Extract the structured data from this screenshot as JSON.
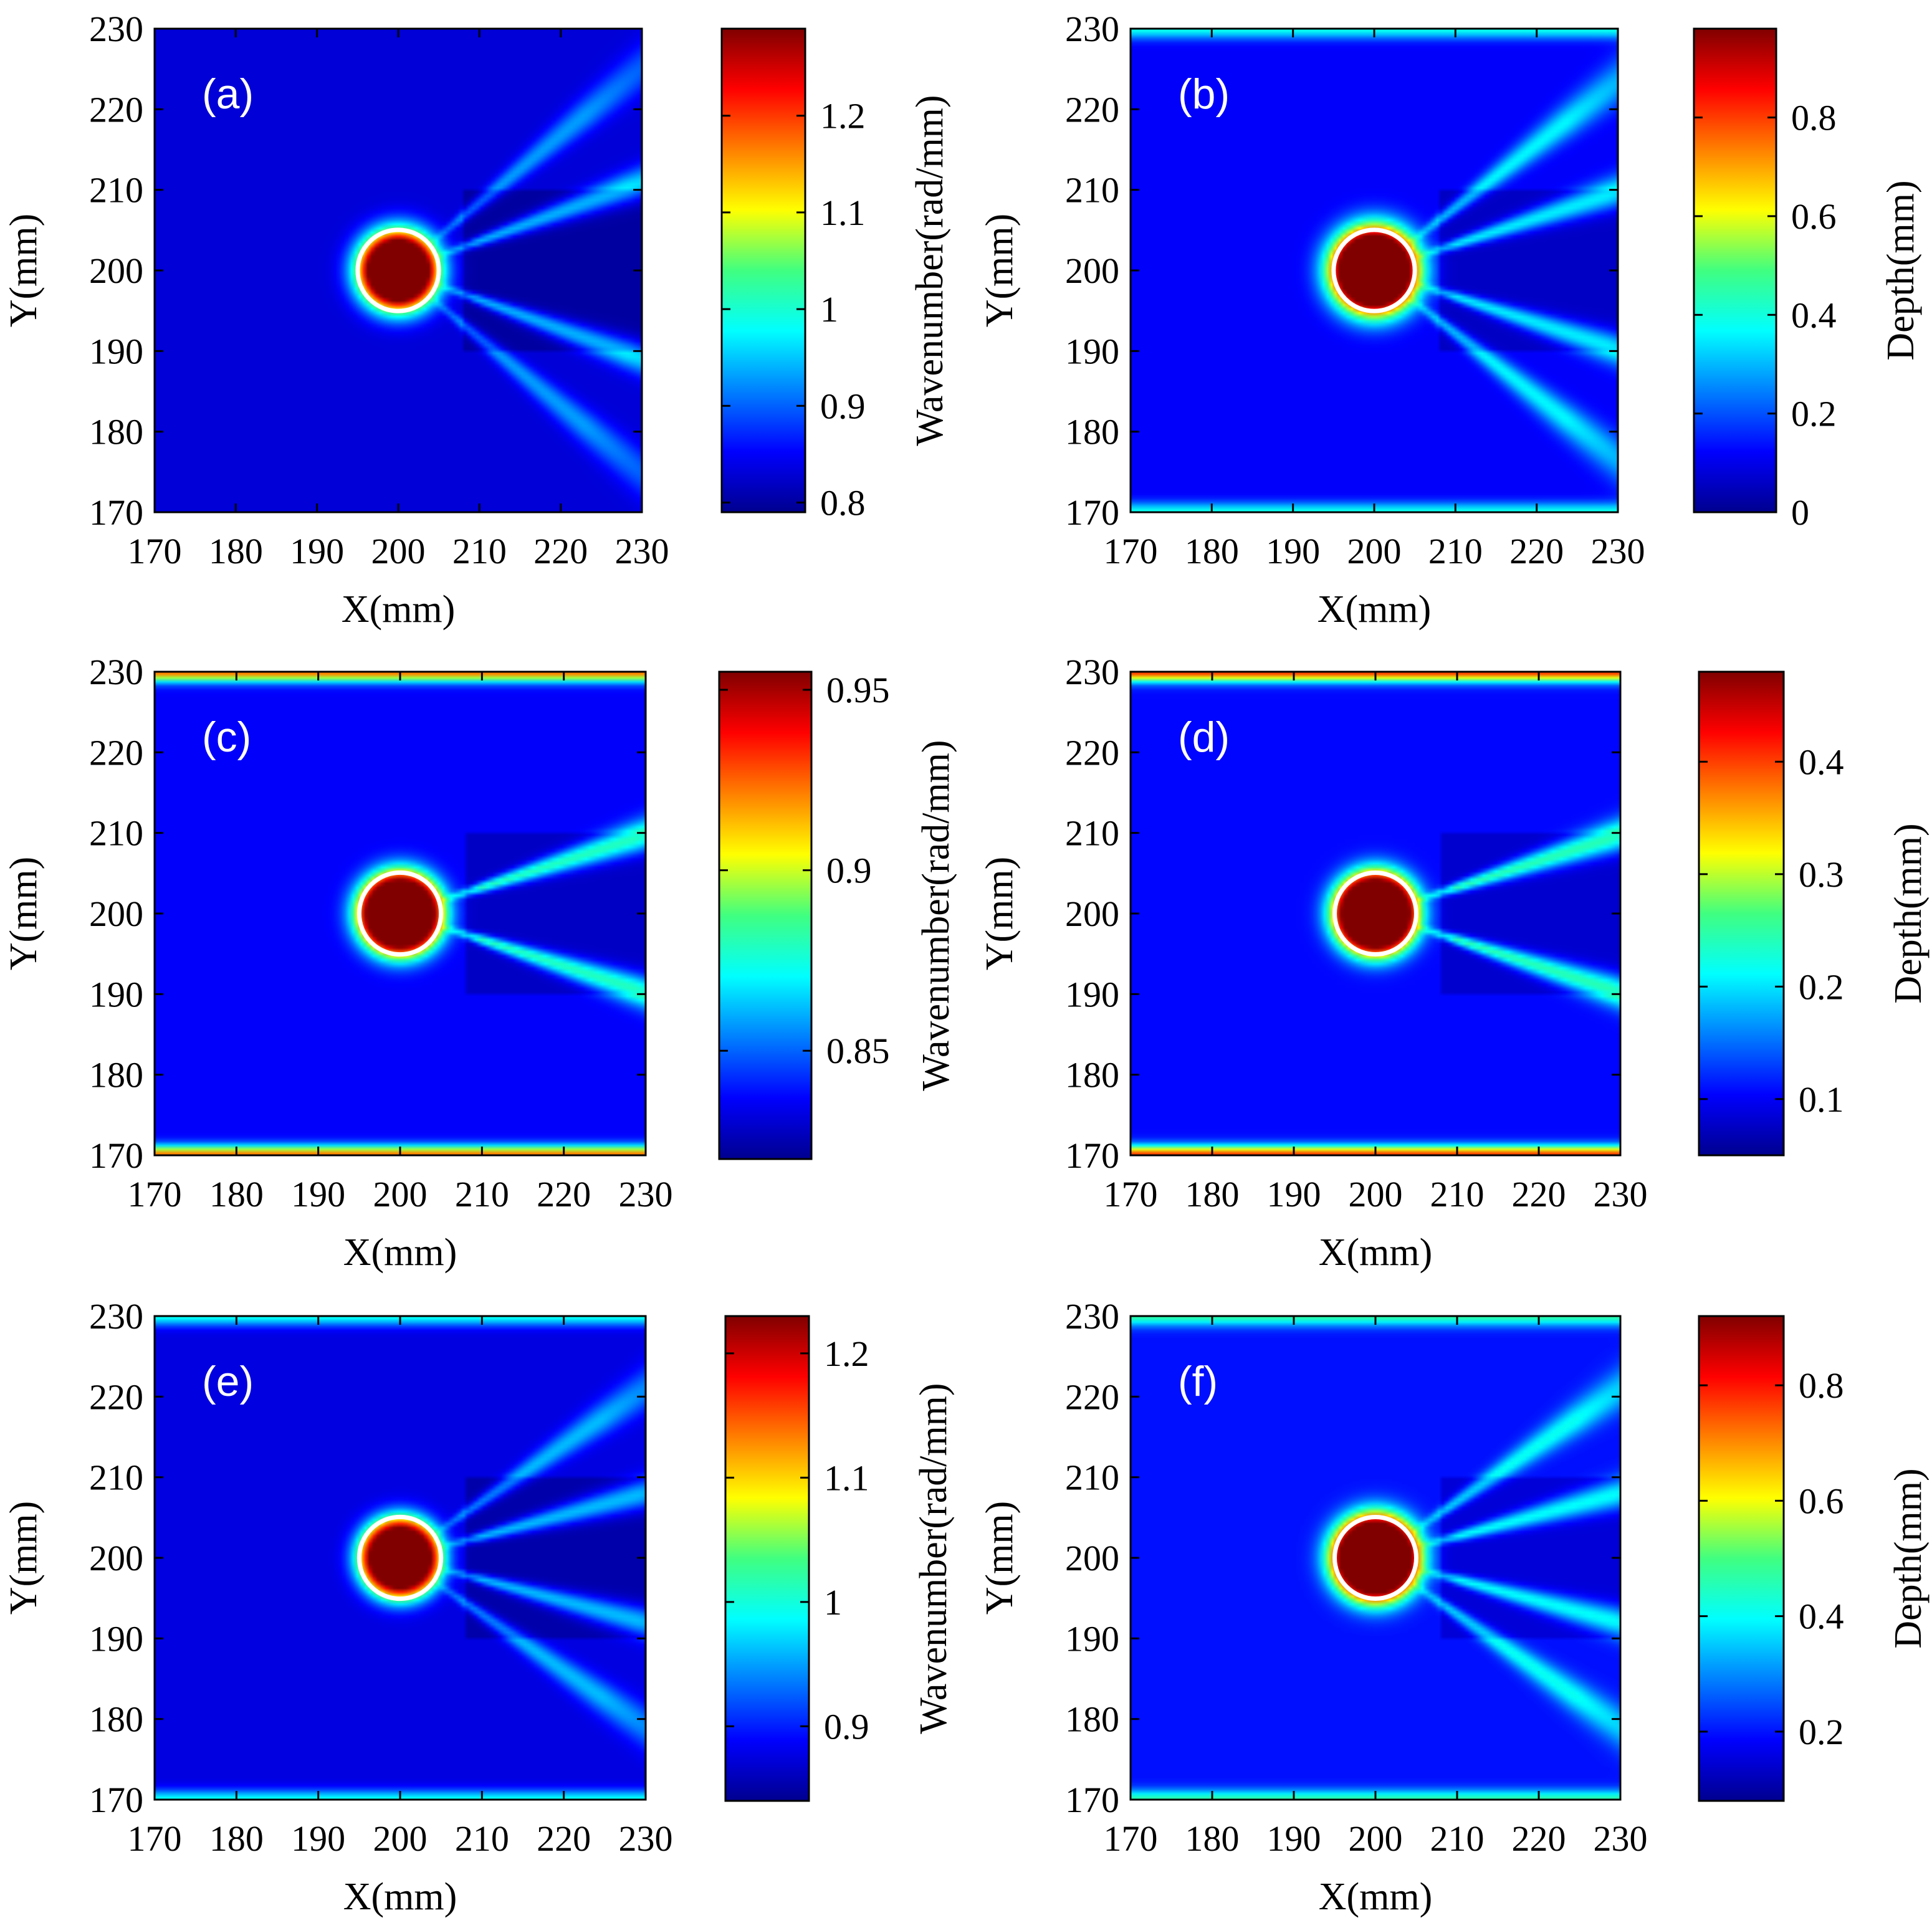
{
  "figure": {
    "colormap": "jet",
    "marker_color": "#ffffff",
    "background": "#ffffff"
  },
  "chart_data": [
    {
      "type": "heatmap",
      "label": "(a)",
      "quantity": "wavenumber",
      "xlabel": "X(mm)",
      "ylabel": "Y(mm)",
      "xlim": [
        170,
        230
      ],
      "ylim": [
        170,
        230
      ],
      "xticks": [
        170,
        180,
        190,
        200,
        210,
        220,
        230
      ],
      "yticks": [
        170,
        180,
        190,
        200,
        210,
        220,
        230
      ],
      "colorbar": {
        "label": "Wavenumber(rad/mm)",
        "range": [
          0.79,
          1.29
        ],
        "ticks": [
          "0.8",
          "0.9",
          "1",
          "1.1",
          "1.2"
        ],
        "tick_values": [
          0.8,
          0.9,
          1.0,
          1.1,
          1.2
        ]
      },
      "defect": {
        "center": [
          200,
          200
        ],
        "radius": 5
      },
      "field": {
        "peak": 0.98,
        "core_radius": 4.2,
        "halo_radius": 6.5,
        "halo_level": 0.42,
        "background": 0.08,
        "rays": [
          {
            "angle": 20,
            "level": 0.28
          },
          {
            "angle": -20,
            "level": 0.28
          },
          {
            "angle": 40,
            "level": 0.2
          },
          {
            "angle": -40,
            "level": 0.2
          }
        ],
        "edge_level": 0.0
      }
    },
    {
      "type": "heatmap",
      "label": "(b)",
      "quantity": "depth",
      "xlabel": "X(mm)",
      "ylabel": "Y(mm)",
      "xlim": [
        170,
        230
      ],
      "ylim": [
        170,
        230
      ],
      "xticks": [
        170,
        180,
        190,
        200,
        210,
        220,
        230
      ],
      "yticks": [
        170,
        180,
        190,
        200,
        210,
        220,
        230
      ],
      "colorbar": {
        "label": "Depth(mm)",
        "range": [
          0,
          0.98
        ],
        "ticks": [
          "0",
          "0.2",
          "0.4",
          "0.6",
          "0.8"
        ],
        "tick_values": [
          0,
          0.2,
          0.4,
          0.6,
          0.8
        ]
      },
      "defect": {
        "center": [
          200,
          200
        ],
        "radius": 5
      },
      "field": {
        "peak": 0.98,
        "core_radius": 4.6,
        "halo_radius": 7,
        "halo_level": 0.45,
        "background": 0.12,
        "rays": [
          {
            "angle": 18,
            "level": 0.3
          },
          {
            "angle": -18,
            "level": 0.3
          },
          {
            "angle": 38,
            "level": 0.25
          },
          {
            "angle": -38,
            "level": 0.25
          }
        ],
        "edge_level": 0.28
      }
    },
    {
      "type": "heatmap",
      "label": "(c)",
      "quantity": "wavenumber",
      "xlabel": "X(mm)",
      "ylabel": "Y(mm)",
      "xlim": [
        170,
        230
      ],
      "ylim": [
        170,
        230
      ],
      "xticks": [
        170,
        180,
        190,
        200,
        210,
        220,
        230
      ],
      "yticks": [
        170,
        180,
        190,
        200,
        210,
        220,
        230
      ],
      "colorbar": {
        "label": "Wavenumber(rad/mm)",
        "range": [
          0.82,
          0.955
        ],
        "ticks": [
          "0.85",
          "0.9",
          "0.95"
        ],
        "tick_values": [
          0.85,
          0.9,
          0.95
        ]
      },
      "defect": {
        "center": [
          200,
          200
        ],
        "radius": 5
      },
      "field": {
        "peak": 0.98,
        "core_radius": 4.4,
        "halo_radius": 6.5,
        "halo_level": 0.45,
        "background": 0.12,
        "rays": [
          {
            "angle": 18,
            "level": 0.38
          },
          {
            "angle": -18,
            "level": 0.38
          }
        ],
        "edge_level": 0.65
      }
    },
    {
      "type": "heatmap",
      "label": "(d)",
      "quantity": "depth",
      "xlabel": "X(mm)",
      "ylabel": "Y(mm)",
      "xlim": [
        170,
        230
      ],
      "ylim": [
        170,
        230
      ],
      "xticks": [
        170,
        180,
        190,
        200,
        210,
        220,
        230
      ],
      "yticks": [
        170,
        180,
        190,
        200,
        210,
        220,
        230
      ],
      "colorbar": {
        "label": "Depth(mm)",
        "range": [
          0.05,
          0.48
        ],
        "ticks": [
          "0.1",
          "0.2",
          "0.3",
          "0.4"
        ],
        "tick_values": [
          0.1,
          0.2,
          0.3,
          0.4
        ]
      },
      "defect": {
        "center": [
          200,
          200
        ],
        "radius": 5
      },
      "field": {
        "peak": 0.98,
        "core_radius": 4.4,
        "halo_radius": 6.5,
        "halo_level": 0.45,
        "background": 0.13,
        "rays": [
          {
            "angle": 18,
            "level": 0.38
          },
          {
            "angle": -18,
            "level": 0.38
          }
        ],
        "edge_level": 0.7
      }
    },
    {
      "type": "heatmap",
      "label": "(e)",
      "quantity": "wavenumber",
      "xlabel": "X(mm)",
      "ylabel": "Y(mm)",
      "xlim": [
        170,
        230
      ],
      "ylim": [
        170,
        230
      ],
      "xticks": [
        170,
        180,
        190,
        200,
        210,
        220,
        230
      ],
      "yticks": [
        170,
        180,
        190,
        200,
        210,
        220,
        230
      ],
      "colorbar": {
        "label": "Wavenumber(rad/mm)",
        "range": [
          0.84,
          1.23
        ],
        "ticks": [
          "0.9",
          "1",
          "1.1",
          "1.2"
        ],
        "tick_values": [
          0.9,
          1.0,
          1.1,
          1.2
        ]
      },
      "defect": {
        "center": [
          200,
          200
        ],
        "radius": 5
      },
      "field": {
        "peak": 0.95,
        "core_radius": 4.2,
        "halo_radius": 6.2,
        "halo_level": 0.42,
        "background": 0.09,
        "rays": [
          {
            "angle": 15,
            "level": 0.28
          },
          {
            "angle": -15,
            "level": 0.28
          },
          {
            "angle": 35,
            "level": 0.22
          },
          {
            "angle": -35,
            "level": 0.22
          }
        ],
        "edge_level": 0.3
      }
    },
    {
      "type": "heatmap",
      "label": "(f)",
      "quantity": "depth",
      "xlabel": "X(mm)",
      "ylabel": "Y(mm)",
      "xlim": [
        170,
        230
      ],
      "ylim": [
        170,
        230
      ],
      "xticks": [
        170,
        180,
        190,
        200,
        210,
        220,
        230
      ],
      "yticks": [
        170,
        180,
        190,
        200,
        210,
        220,
        230
      ],
      "colorbar": {
        "label": "Depth(mm)",
        "range": [
          0.08,
          0.92
        ],
        "ticks": [
          "0.2",
          "0.4",
          "0.6",
          "0.8"
        ],
        "tick_values": [
          0.2,
          0.4,
          0.6,
          0.8
        ]
      },
      "defect": {
        "center": [
          200,
          200
        ],
        "radius": 5
      },
      "field": {
        "peak": 0.98,
        "core_radius": 4.6,
        "halo_radius": 6.8,
        "halo_level": 0.45,
        "background": 0.14,
        "rays": [
          {
            "angle": 15,
            "level": 0.3
          },
          {
            "angle": -15,
            "level": 0.3
          },
          {
            "angle": 35,
            "level": 0.25
          },
          {
            "angle": -35,
            "level": 0.25
          }
        ],
        "edge_level": 0.32
      }
    }
  ]
}
